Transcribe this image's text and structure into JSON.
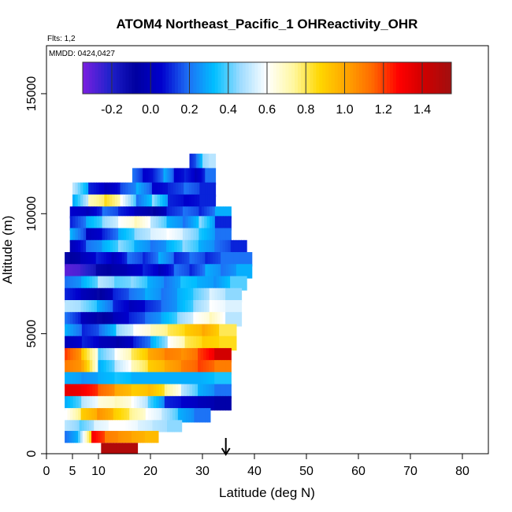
{
  "chart_data": {
    "type": "heatmap",
    "title": "ATOM4 Northeast_Pacific_1 OHReactivity_OHR",
    "flights_note": "Flts: 1,2",
    "dates_note": "MMDD: 0424,0427",
    "xlabel": "Latitude (deg N)",
    "ylabel": "Altitude (m)",
    "xlim": [
      0,
      85
    ],
    "ylim": [
      0,
      17000
    ],
    "x_ticks": [
      0,
      5,
      10,
      20,
      30,
      40,
      50,
      60,
      70,
      80
    ],
    "y_ticks": [
      0,
      5000,
      10000,
      15000
    ],
    "y_tick_labels": [
      "0",
      "5000",
      "10000",
      "15000"
    ],
    "colorbar": {
      "range": [
        -0.35,
        1.55
      ],
      "ticks": [
        -0.2,
        0.0,
        0.2,
        0.4,
        0.6,
        0.8,
        1.0,
        1.2,
        1.4
      ],
      "tick_labels": [
        "-0.2",
        "0.0",
        "0.2",
        "0.4",
        "0.6",
        "0.8",
        "1.0",
        "1.2",
        "1.4"
      ],
      "colors": [
        "#7b1fe0",
        "#2222cc",
        "#0000a0",
        "#0000cd",
        "#1e6ff5",
        "#00bfff",
        "#9fdcff",
        "#ffffff",
        "#fff7a0",
        "#ffd700",
        "#ffa500",
        "#ff6a00",
        "#ff0000",
        "#cd0000",
        "#a01010"
      ]
    },
    "marker": {
      "x": 34.5,
      "label": "arrow"
    },
    "rows": [
      {
        "y0": 11800,
        "y1": 12500,
        "x0": 27.5,
        "x1": 32.5,
        "values": [
          0.1,
          0.2,
          0.45,
          0.5
        ]
      },
      {
        "y0": 11200,
        "y1": 11900,
        "x0": 16.5,
        "x1": 32.5,
        "values": [
          0.2,
          0.05,
          0.1,
          0.3,
          0.05,
          0.1,
          0.0,
          0.2
        ]
      },
      {
        "y0": 10700,
        "y1": 11300,
        "x0": 5,
        "x1": 32.5,
        "values": [
          0.5,
          0.1,
          0.0,
          0.15,
          0.3,
          0.05,
          0.1,
          0.2,
          0.1
        ]
      },
      {
        "y0": 10200,
        "y1": 10800,
        "x0": 5,
        "x1": 32.5,
        "values": [
          0.3,
          0.7,
          0.85,
          0.6,
          0.2,
          0.45,
          0.1,
          0.05,
          0.1
        ]
      },
      {
        "y0": 9800,
        "y1": 10300,
        "x0": 4.5,
        "x1": 35.5,
        "values": [
          0.05,
          0.0,
          0.2,
          0.1,
          0.0,
          -0.1,
          0.1,
          0.2,
          0.1,
          0.3
        ]
      },
      {
        "y0": 9300,
        "y1": 9900,
        "x0": 4.5,
        "x1": 35.5,
        "values": [
          0.1,
          0.3,
          0.45,
          0.6,
          0.7,
          0.5,
          0.3,
          0.2,
          0.45,
          0.1
        ]
      },
      {
        "y0": 8800,
        "y1": 9400,
        "x0": 4.5,
        "x1": 35.5,
        "values": [
          0.3,
          0.0,
          0.1,
          0.3,
          0.45,
          0.55,
          0.6,
          0.5,
          0.35,
          0.2
        ]
      },
      {
        "y0": 8300,
        "y1": 8900,
        "x0": 4.5,
        "x1": 38.5,
        "values": [
          0.0,
          0.2,
          0.3,
          0.45,
          0.3,
          0.2,
          0.3,
          0.45,
          0.3,
          0.2,
          0.1
        ]
      },
      {
        "y0": 7800,
        "y1": 8400,
        "x0": 3.5,
        "x1": 39.5,
        "values": [
          -0.1,
          0.0,
          0.1,
          0.0,
          0.2,
          0.1,
          0.3,
          0.1,
          0.2,
          0.1,
          0.2,
          0.2
        ]
      },
      {
        "y0": 7300,
        "y1": 7900,
        "x0": 3.5,
        "x1": 39.5,
        "values": [
          -0.3,
          -0.25,
          -0.1,
          -0.05,
          0.0,
          0.1,
          0.0,
          0.2,
          0.1,
          0.3,
          0.2,
          0.3
        ]
      },
      {
        "y0": 6800,
        "y1": 7400,
        "x0": 3.5,
        "x1": 38.5,
        "values": [
          0.2,
          0.3,
          0.5,
          0.4,
          0.45,
          0.3,
          0.2,
          0.35,
          0.3,
          0.25,
          0.4
        ]
      },
      {
        "y0": 6300,
        "y1": 6900,
        "x0": 3.5,
        "x1": 37.5,
        "values": [
          0.1,
          0.0,
          -0.1,
          0.1,
          0.2,
          0.3,
          0.2,
          0.3,
          0.4,
          0.55,
          0.45
        ]
      },
      {
        "y0": 5800,
        "y1": 6400,
        "x0": 3.5,
        "x1": 37.5,
        "values": [
          0.5,
          0.45,
          0.3,
          0.1,
          0.0,
          0.1,
          0.2,
          0.3,
          0.45,
          0.6,
          0.55
        ]
      },
      {
        "y0": 5300,
        "y1": 5900,
        "x0": 3.5,
        "x1": 37.5,
        "values": [
          0.2,
          0.0,
          -0.1,
          0.0,
          0.1,
          0.2,
          0.3,
          0.45,
          0.6,
          0.7,
          0.5
        ]
      },
      {
        "y0": 4800,
        "y1": 5400,
        "x0": 3.5,
        "x1": 36.5,
        "values": [
          0.3,
          0.1,
          0.2,
          0.45,
          0.6,
          0.7,
          0.8,
          0.9,
          1.0,
          0.8
        ]
      },
      {
        "y0": 4300,
        "y1": 4900,
        "x0": 3.5,
        "x1": 36.5,
        "values": [
          0.0,
          0.1,
          0.0,
          -0.05,
          0.1,
          0.3,
          0.6,
          0.8,
          0.9,
          0.85
        ]
      },
      {
        "y0": 3800,
        "y1": 4400,
        "x0": 3.5,
        "x1": 35.5,
        "values": [
          1.2,
          0.9,
          0.4,
          0.6,
          0.8,
          1.0,
          1.1,
          1.05,
          1.2,
          1.4
        ]
      },
      {
        "y0": 3300,
        "y1": 3900,
        "x0": 3.5,
        "x1": 35.5,
        "values": [
          1.1,
          1.0,
          0.3,
          0.5,
          0.7,
          0.9,
          1.0,
          1.1,
          1.2,
          1.1
        ]
      },
      {
        "y0": 2800,
        "y1": 3400,
        "x0": 3.5,
        "x1": 35.5,
        "values": [
          0.3,
          0.25,
          0.3,
          0.35,
          0.3,
          0.3,
          0.3,
          0.3,
          0.3,
          0.35
        ]
      },
      {
        "y0": 2300,
        "y1": 2900,
        "x0": 3.5,
        "x1": 35.5,
        "values": [
          1.35,
          1.3,
          1.15,
          1.0,
          0.9,
          0.95,
          0.75,
          0.5,
          0.3,
          0.2
        ]
      },
      {
        "y0": 1800,
        "y1": 2400,
        "x0": 3.5,
        "x1": 35.5,
        "values": [
          0.3,
          0.5,
          0.65,
          0.7,
          0.6,
          0.4,
          0.1,
          0.05,
          0.0,
          -0.05
        ]
      },
      {
        "y0": 1300,
        "y1": 1900,
        "x0": 3.5,
        "x1": 31.5,
        "values": [
          0.6,
          0.9,
          1.05,
          0.9,
          0.75,
          0.6,
          0.5,
          0.3,
          0.2
        ]
      },
      {
        "y0": 900,
        "y1": 1400,
        "x0": 3.5,
        "x1": 26,
        "values": [
          0.5,
          0.4,
          0.55,
          0.6,
          0.6,
          0.55,
          0.5,
          0.45
        ]
      },
      {
        "y0": 450,
        "y1": 950,
        "x0": 3.5,
        "x1": 21.5,
        "values": [
          0.2,
          0.4,
          1.3,
          1.1,
          1.05,
          1.0,
          0.95
        ]
      },
      {
        "y0": 0,
        "y1": 450,
        "x0": 10.5,
        "x1": 17.5,
        "values": [
          1.5,
          1.5
        ]
      }
    ]
  }
}
